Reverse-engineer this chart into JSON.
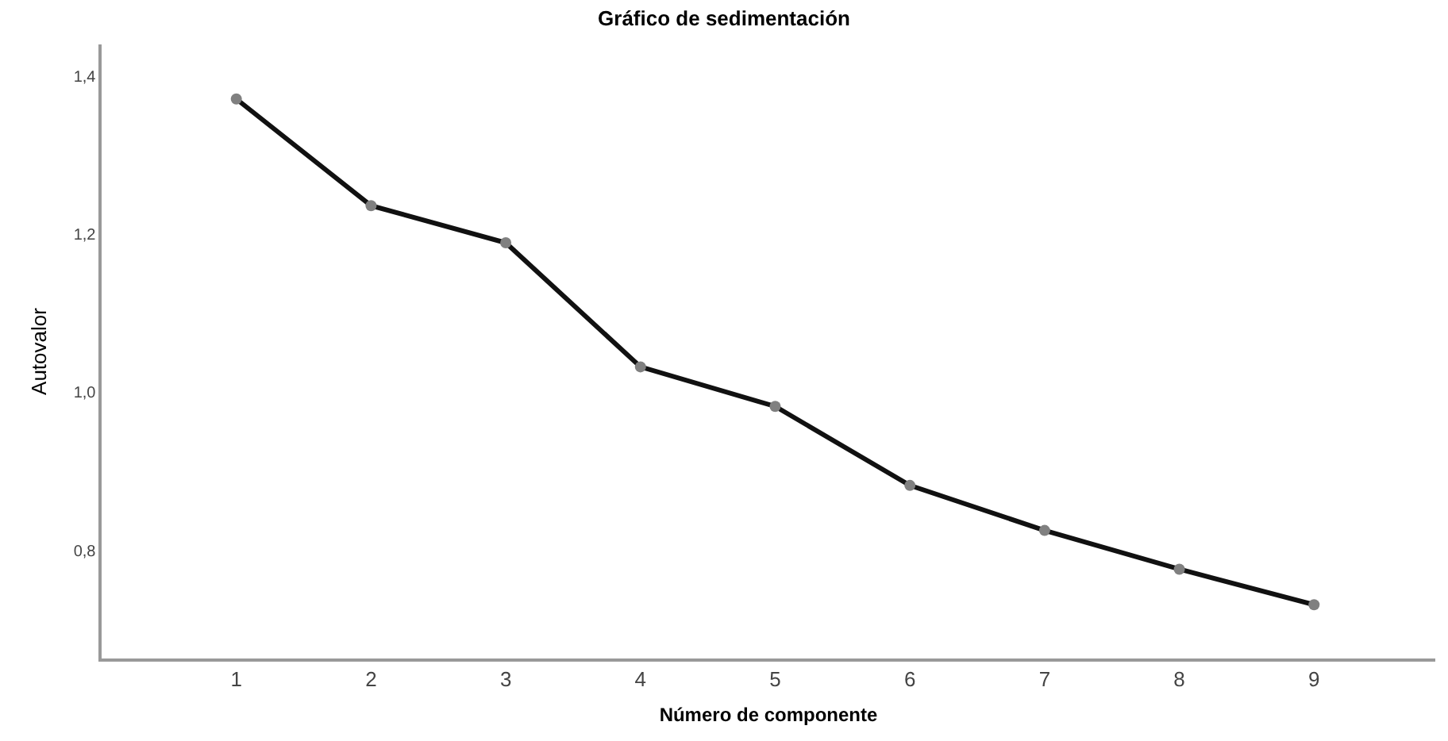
{
  "chart_data": {
    "type": "line",
    "title": "Gráfico de sedimentación",
    "xlabel": "Número de componente",
    "ylabel": "Autovalor",
    "x": [
      1,
      2,
      3,
      4,
      5,
      6,
      7,
      8,
      9
    ],
    "series": [
      {
        "color": "#111111",
        "values": [
          1.371,
          1.236,
          1.189,
          1.032,
          0.982,
          0.882,
          0.825,
          0.776,
          0.731
        ]
      }
    ],
    "xlim": [
      0,
      9.9
    ],
    "xticks": [
      1,
      2,
      3,
      4,
      5,
      6,
      7,
      8,
      9
    ],
    "ylim": [
      0.663,
      1.44
    ],
    "yticks": [
      {
        "value": 0.8,
        "label": "0,8"
      },
      {
        "value": 1.0,
        "label": "1,0"
      },
      {
        "value": 1.2,
        "label": "1,2"
      },
      {
        "value": 1.4,
        "label": "1,4"
      }
    ],
    "grid": false,
    "marker": "circle",
    "line_style": "solid"
  }
}
